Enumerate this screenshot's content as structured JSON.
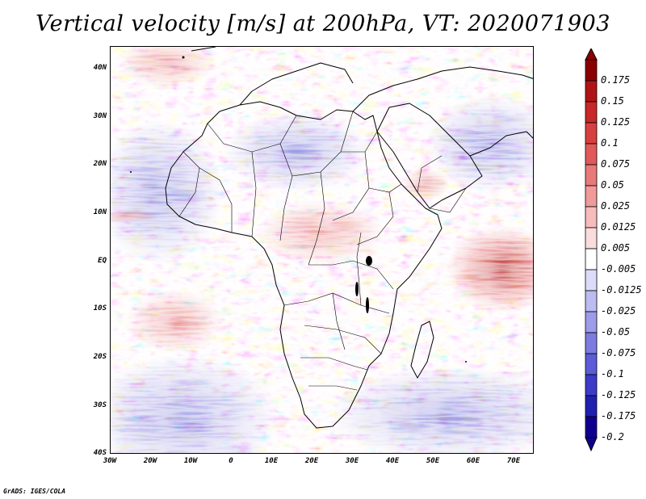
{
  "title": "Vertical velocity [m/s] at 200hPa, VT: 2020071903",
  "footer": "GrADS: IGES/COLA",
  "y_axis_labels": [
    "40N",
    "30N",
    "20N",
    "10N",
    "EQ",
    "10S",
    "20S",
    "30S",
    "40S"
  ],
  "x_axis_labels": [
    "30W",
    "20W",
    "10W",
    "0",
    "10E",
    "20E",
    "30E",
    "40E",
    "50E",
    "60E",
    "70E"
  ],
  "colorbar": {
    "labels": [
      "0.175",
      "0.15",
      "0.125",
      "0.1",
      "0.075",
      "0.05",
      "0.025",
      "0.0125",
      "0.005",
      "-0.005",
      "-0.0125",
      "-0.025",
      "-0.05",
      "-0.075",
      "-0.1",
      "-0.125",
      "-0.175",
      "-0.2"
    ],
    "colors": [
      "#8b0000",
      "#b01515",
      "#c82828",
      "#d84040",
      "#e05a5a",
      "#e87a7a",
      "#f09a9a",
      "#f6bcbc",
      "#fbdcdc",
      "#ffffff",
      "#dcdcf8",
      "#bcbcf0",
      "#9c9ce8",
      "#7c7ce0",
      "#5c5cd8",
      "#3c3cc8",
      "#2020b0",
      "#100090"
    ]
  },
  "map": {
    "lon_range": [
      -30,
      75
    ],
    "lat_range": [
      -40,
      45
    ],
    "variable": "Vertical velocity",
    "units": "m/s",
    "level": "200hPa",
    "valid_time": "2020071903"
  }
}
